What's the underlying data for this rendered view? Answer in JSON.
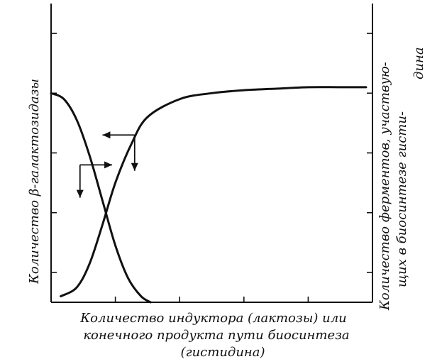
{
  "chart_data": {
    "type": "line",
    "title": "",
    "xlabel": {
      "lines": [
        "Количество индуктора (лактозы) или",
        "конечного продукта пути биосинтеза",
        "(гистидина)"
      ]
    },
    "ylabel_left": "Количество β-галактозидазы",
    "ylabel_right": {
      "lines": [
        "Количество ферментов, участвую-",
        "щих в биосинтезе гисти-",
        "дина"
      ]
    },
    "xlim": [
      0,
      10
    ],
    "ylim": [
      0,
      10
    ],
    "grid": false,
    "legend": "none",
    "x_ticks": [
      2,
      4,
      6,
      8,
      10
    ],
    "y_ticks_left": [
      1,
      3,
      5,
      7,
      9
    ],
    "y_ticks_right": [
      1,
      3,
      5,
      7,
      9
    ],
    "series": [
      {
        "values": [
          {
            "x": 0.0,
            "y": 7.0
          },
          {
            "x": 0.4,
            "y": 6.8
          },
          {
            "x": 0.8,
            "y": 6.1
          },
          {
            "x": 1.2,
            "y": 4.9
          },
          {
            "x": 1.6,
            "y": 3.4
          },
          {
            "x": 2.0,
            "y": 1.9
          },
          {
            "x": 2.4,
            "y": 0.8
          },
          {
            "x": 2.8,
            "y": 0.2
          },
          {
            "x": 3.1,
            "y": 0.0
          }
        ]
      },
      {
        "values": [
          {
            "x": 0.3,
            "y": 0.2
          },
          {
            "x": 0.8,
            "y": 0.5
          },
          {
            "x": 1.2,
            "y": 1.3
          },
          {
            "x": 1.6,
            "y": 2.6
          },
          {
            "x": 2.0,
            "y": 4.0
          },
          {
            "x": 2.5,
            "y": 5.3
          },
          {
            "x": 3.0,
            "y": 6.2
          },
          {
            "x": 4.0,
            "y": 6.8
          },
          {
            "x": 5.0,
            "y": 7.0
          },
          {
            "x": 6.0,
            "y": 7.1
          },
          {
            "x": 7.0,
            "y": 7.15
          },
          {
            "x": 8.0,
            "y": 7.2
          },
          {
            "x": 9.0,
            "y": 7.2
          },
          {
            "x": 9.8,
            "y": 7.2
          }
        ]
      }
    ],
    "annotations": [
      {
        "type": "arrow-down",
        "x": 0.9,
        "y_from": 4.6,
        "y_to": 3.5
      },
      {
        "type": "arrow-right",
        "y": 4.6,
        "x_from": 0.9,
        "x_to": 1.9
      },
      {
        "type": "arrow-left",
        "y": 5.6,
        "x_from": 2.6,
        "x_to": 1.6
      },
      {
        "type": "arrow-down",
        "x": 2.6,
        "y_from": 5.6,
        "y_to": 4.4
      }
    ]
  }
}
